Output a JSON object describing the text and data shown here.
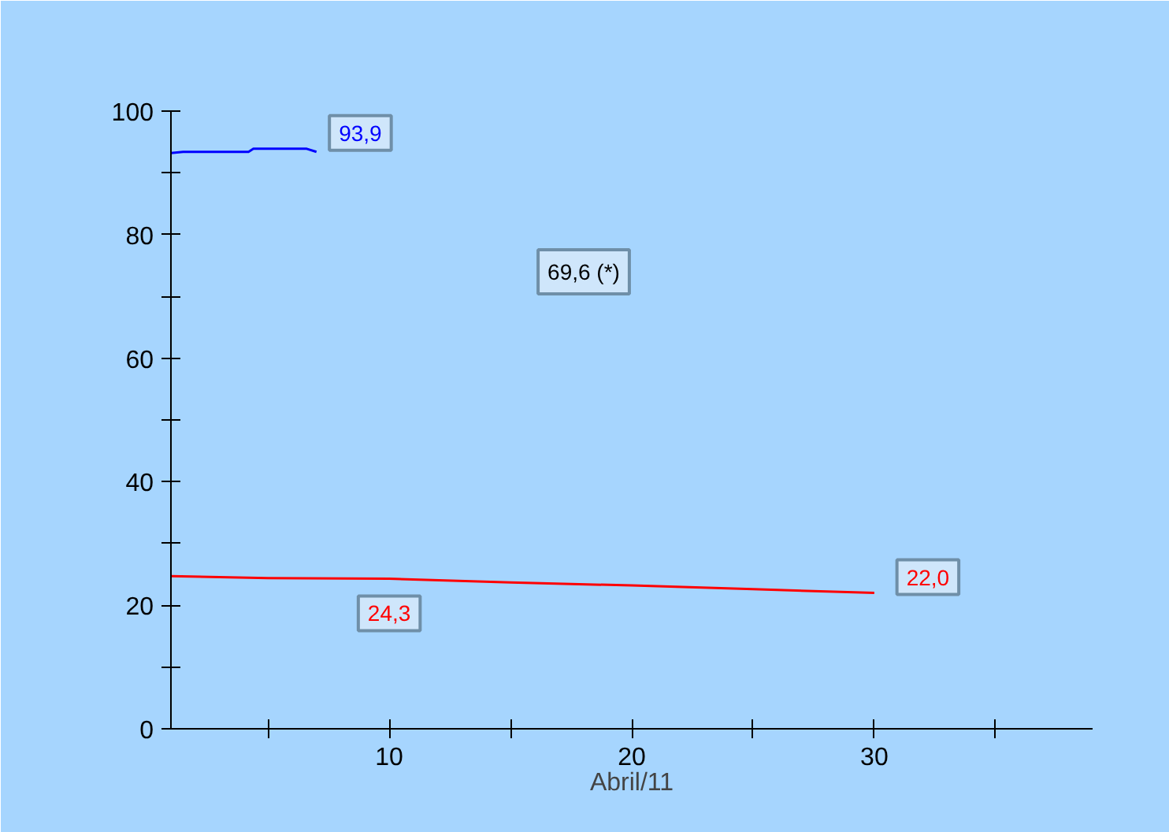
{
  "chart_data": {
    "type": "line",
    "xlabel": "Abril/11",
    "xlim": [
      1,
      39
    ],
    "ylim": [
      0,
      100
    ],
    "xticks": [
      {
        "value": 5,
        "label": null
      },
      10,
      {
        "value": 15,
        "label": null
      },
      20,
      {
        "value": 25,
        "label": null
      },
      30,
      {
        "value": 35,
        "label": null
      }
    ],
    "yticks": [
      0,
      {
        "value": 10,
        "label": null
      },
      20,
      {
        "value": 30,
        "label": null
      },
      40,
      {
        "value": 50,
        "label": null
      },
      60,
      {
        "value": 70,
        "label": null
      },
      80,
      {
        "value": 90,
        "label": null
      },
      100
    ],
    "grid": false,
    "marker": "none",
    "line_style": "solid",
    "series": [
      {
        "color": "#0000ff",
        "x": [
          1,
          1.5,
          4.2,
          4.4,
          6.6,
          7
        ],
        "values": [
          93.2,
          93.4,
          93.4,
          93.9,
          93.9,
          93.4
        ],
        "value_labels": [
          null,
          null,
          null,
          null,
          "93,9",
          null
        ]
      },
      {
        "color": "#ff0000",
        "x": [
          1,
          5,
          10,
          15,
          20,
          25,
          30
        ],
        "values": [
          24.7,
          24.4,
          24.3,
          23.7,
          23.2,
          22.6,
          22.0
        ],
        "value_labels": [
          null,
          null,
          "24,3",
          null,
          null,
          null,
          "22,0"
        ]
      }
    ],
    "annotations": [
      "69,6 (*)"
    ]
  }
}
